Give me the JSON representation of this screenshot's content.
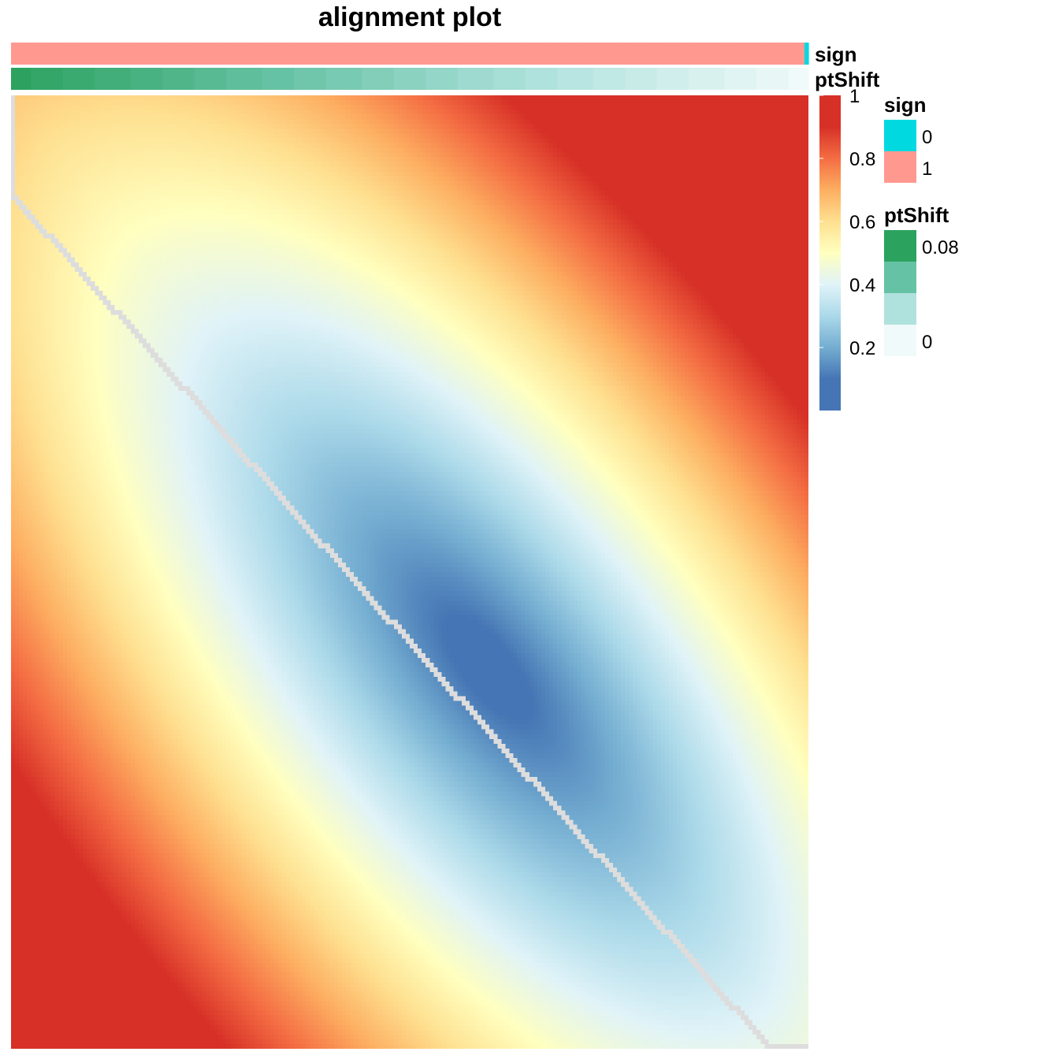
{
  "chart_data": {
    "type": "heatmap",
    "title": "alignment plot",
    "n_rows": 200,
    "n_cols": 200,
    "value_range": [
      0,
      1
    ],
    "colorscale": {
      "stops": [
        0.0,
        0.1,
        0.2,
        0.3,
        0.4,
        0.5,
        0.6,
        0.7,
        0.8,
        0.9,
        1.0
      ],
      "colors": [
        "#4575b4",
        "#4575b4",
        "#74add1",
        "#abd9e9",
        "#e0f3f8",
        "#ffffbf",
        "#fee090",
        "#fdae61",
        "#f46d43",
        "#d73027",
        "#d73027"
      ],
      "tick_labels": [
        "0.2",
        "0.4",
        "0.6",
        "0.8",
        "1"
      ],
      "tick_values": [
        0.2,
        0.4,
        0.6,
        0.8,
        1.0
      ]
    },
    "alignment_path_color": "#dddddd",
    "annotations": {
      "sign": {
        "label": "sign",
        "colors": {
          "0": "#00d9e0",
          "1": "#ff9990"
        },
        "values_summary": "all columns 1 except the last column which is 0"
      },
      "ptShift": {
        "label": "ptShift",
        "range": [
          0,
          0.08
        ],
        "colors": [
          "#f0fafa",
          "#b0e2dd",
          "#66c2a4",
          "#2ca25f"
        ]
      }
    }
  },
  "legend": {
    "sign": {
      "title": "sign",
      "entries": [
        {
          "label": "0",
          "color": "#00d9e0"
        },
        {
          "label": "1",
          "color": "#ff9990"
        }
      ]
    },
    "ptShift": {
      "title": "ptShift",
      "entries": [
        {
          "label": "0.08",
          "color": "#2ca25f"
        },
        {
          "label": "",
          "color": "#66c2a4"
        },
        {
          "label": "",
          "color": "#b0e2dd"
        },
        {
          "label": "0",
          "color": "#f0fafa"
        }
      ]
    }
  }
}
